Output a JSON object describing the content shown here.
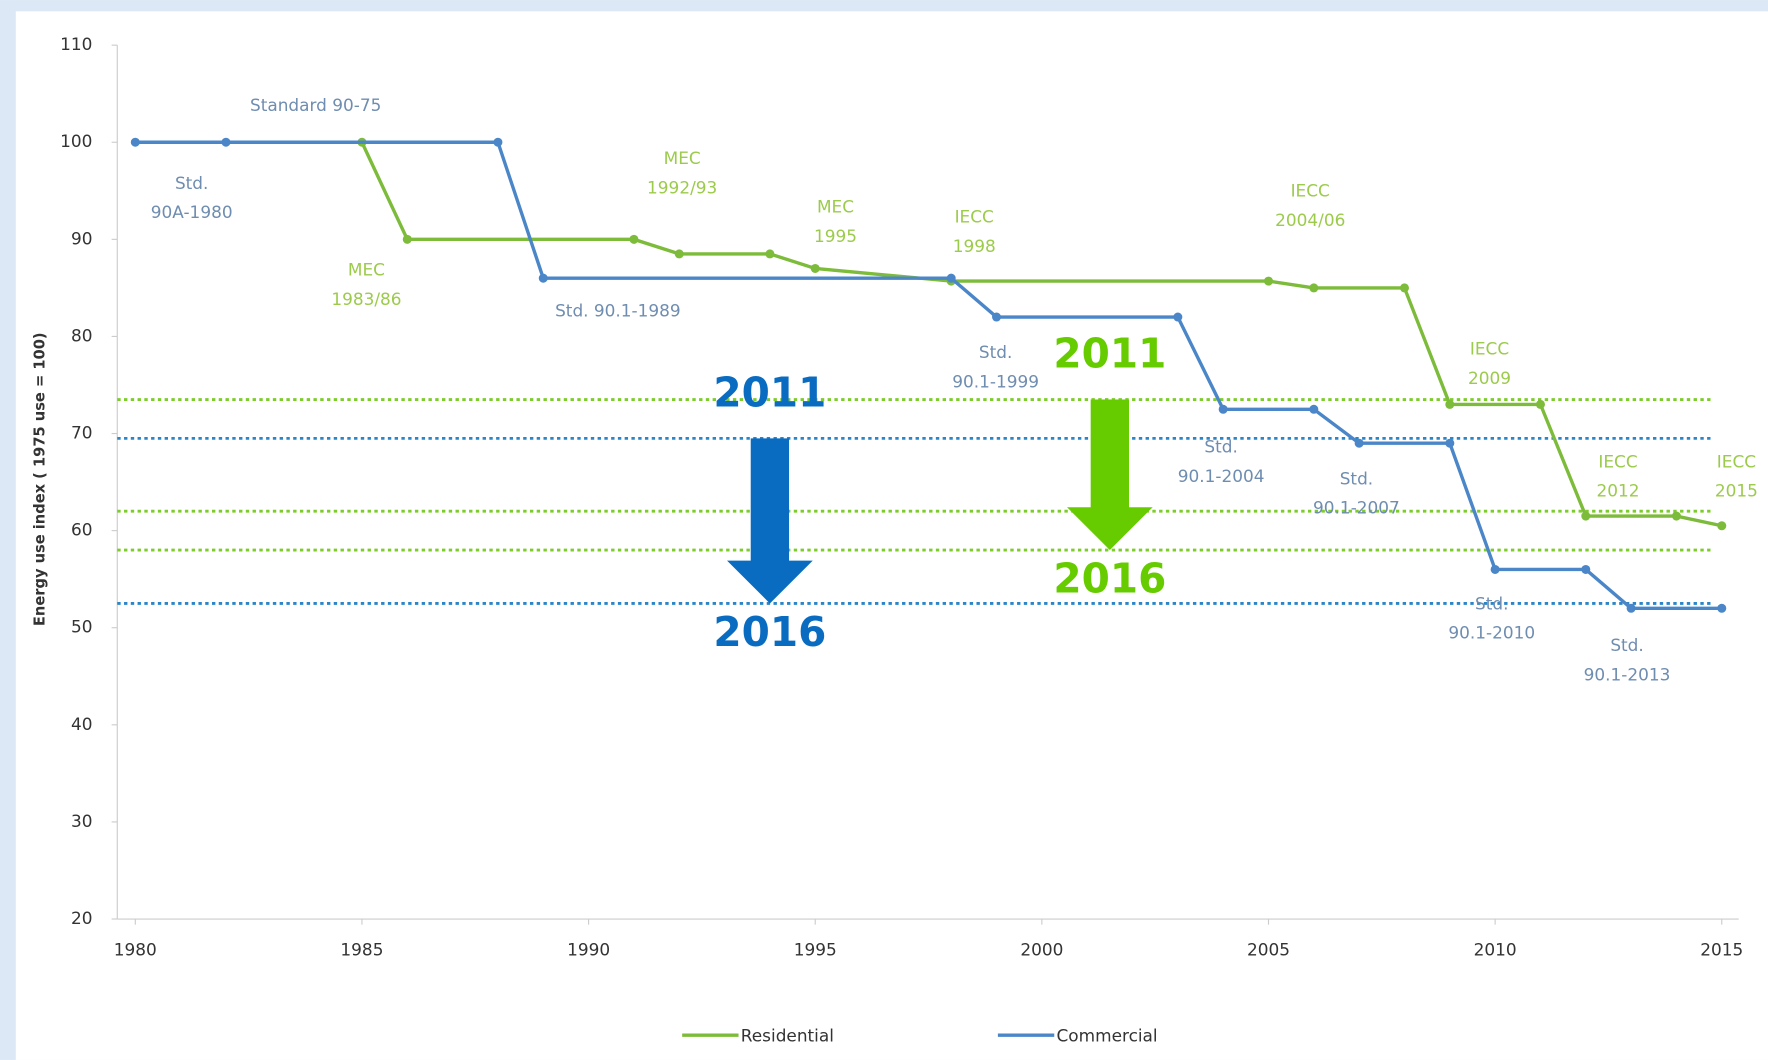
{
  "chart_data": {
    "type": "line",
    "y_axis_label": "Energy use index ( 1975 use = 100)",
    "xlim": [
      1980,
      2015
    ],
    "xticks": [
      1980,
      1985,
      1990,
      1995,
      2000,
      2005,
      2010,
      2015
    ],
    "ylim": [
      20,
      110
    ],
    "yticks": [
      20,
      30,
      40,
      50,
      60,
      70,
      80,
      90,
      100,
      110
    ],
    "series": [
      {
        "name": "Residential",
        "color": "#7dbb3a",
        "x": [
          1985,
          1986,
          1991,
          1992,
          1994,
          1995,
          1998,
          2005,
          2006,
          2008,
          2009,
          2011,
          2012,
          2014,
          2015
        ],
        "values": [
          100,
          90,
          90,
          88.5,
          88.5,
          87,
          85.7,
          85.7,
          85,
          85,
          73,
          73,
          61.5,
          61.5,
          60.5
        ],
        "labels": [
          [
            "MEC",
            "1983/86"
          ],
          [
            "MEC",
            "1992/93"
          ],
          [
            "MEC",
            "1995"
          ],
          [
            "IECC",
            "1998"
          ],
          [
            "IECC",
            "2004/06"
          ],
          [
            "IECC",
            "2009"
          ],
          [
            "IECC",
            "2012"
          ],
          [
            "IECC",
            "2015"
          ]
        ]
      },
      {
        "name": "Commercial",
        "color": "#4a86c8",
        "x": [
          1980,
          1982,
          1988,
          1989,
          1998,
          1999,
          2003,
          2004,
          2006,
          2007,
          2009,
          2010,
          2012,
          2013,
          2015
        ],
        "values": [
          100,
          100,
          100,
          86,
          86,
          82,
          82,
          72.5,
          72.5,
          69,
          69,
          56,
          56,
          52,
          52
        ],
        "labels": [
          [
            "Std.",
            "90A-1980"
          ],
          [
            "Standard 90-75"
          ],
          [
            "Std. 90.1-1989"
          ],
          [
            "Std.",
            "90.1-1999"
          ],
          [
            "Std.",
            "90.1-2004"
          ],
          [
            "Std.",
            "90.1-2007"
          ],
          [
            "Std.",
            "90.1-2010"
          ],
          [
            "Std.",
            "90.1-2013"
          ]
        ]
      }
    ],
    "reference_lines": [
      {
        "value": 73.5,
        "color": "#7ccc2a"
      },
      {
        "value": 69.5,
        "color": "#2a86c8"
      },
      {
        "value": 62,
        "color": "#7ccc2a"
      },
      {
        "value": 58,
        "color": "#7ccc2a"
      },
      {
        "value": 52.5,
        "color": "#2a86c8"
      }
    ],
    "arrows": [
      {
        "from": 69.5,
        "to": 52.5,
        "from_label": "2011",
        "to_label": "2016",
        "color": "#0a6cc0"
      },
      {
        "from": 73.5,
        "to": 58,
        "from_label": "2011",
        "to_label": "2016",
        "color": "#66cc00"
      }
    ]
  }
}
